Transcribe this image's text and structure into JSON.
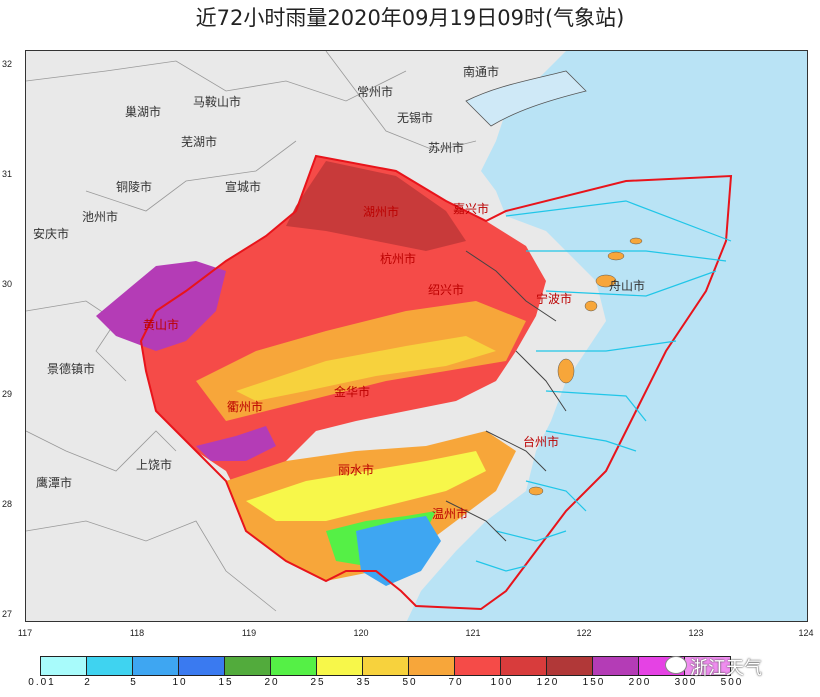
{
  "title": "近72小时雨量2020年09月19日09时(气象站)",
  "axes": {
    "y_ticks": [
      "32",
      "31",
      "30",
      "29",
      "28",
      "27"
    ],
    "x_ticks": [
      "117",
      "118",
      "119",
      "120",
      "121",
      "122",
      "123",
      "124"
    ]
  },
  "cities": {
    "nantong": "南通市",
    "chaohu": "巢湖市",
    "maanshan": "马鞍山市",
    "changzhou": "常州市",
    "wuxi": "无锡市",
    "wuhu": "芜湖市",
    "suzhou": "苏州市",
    "tongling": "铜陵市",
    "xuancheng": "宣城市",
    "chizhou": "池州市",
    "anqing": "安庆市",
    "huzhou": "湖州市",
    "jiaxing": "嘉兴市",
    "hangzhou": "杭州市",
    "huangshan": "黄山市",
    "shaoxing": "绍兴市",
    "ningbo": "宁波市",
    "zhoushan": "舟山市",
    "jingdezhen": "景德镇市",
    "jinhua": "金华市",
    "quzhou": "衢州市",
    "taizhou": "台州市",
    "shangrao": "上饶市",
    "lishui": "丽水市",
    "yingtan": "鹰潭市",
    "wenzhou": "温州市"
  },
  "legend": {
    "colors": [
      "#a8fbfb",
      "#3fd3f0",
      "#3ea6f2",
      "#3a7af0",
      "#52ab3c",
      "#55f046",
      "#f7f74a",
      "#f7d23d",
      "#f7a63a",
      "#f54b48",
      "#d83c3c",
      "#b13838",
      "#b43cb6",
      "#e542e4",
      "#f08df0"
    ],
    "labels": [
      "0.01",
      "2",
      "5",
      "10",
      "15",
      "20",
      "25",
      "35",
      "50",
      "70",
      "100",
      "120",
      "150",
      "200",
      "300",
      "500"
    ]
  },
  "watermark": "浙江天气"
}
